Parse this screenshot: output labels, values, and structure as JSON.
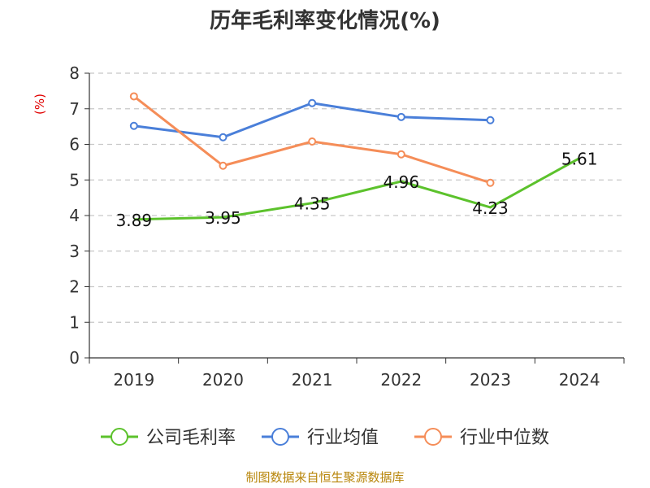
{
  "chart_data": {
    "type": "line",
    "title": "历年毛利率变化情况(%)",
    "ylabel": "(%)",
    "xlabel": "",
    "categories": [
      "2019",
      "2020",
      "2021",
      "2022",
      "2023",
      "2024"
    ],
    "ylim": [
      0,
      8
    ],
    "yticks": [
      "0",
      "1",
      "2",
      "3",
      "4",
      "5",
      "6",
      "7",
      "8"
    ],
    "grid": true,
    "legend_position": "bottom",
    "series": [
      {
        "name": "公司毛利率",
        "color": "#5cc22c",
        "values": [
          3.89,
          3.95,
          4.35,
          4.96,
          4.23,
          5.61
        ],
        "labels": [
          "3.89",
          "3.95",
          "4.35",
          "4.96",
          "4.23",
          "5.61"
        ]
      },
      {
        "name": "行业均值",
        "color": "#4a7fd9",
        "values": [
          6.52,
          6.2,
          7.16,
          6.77,
          6.68,
          null
        ]
      },
      {
        "name": "行业中位数",
        "color": "#f58d58",
        "values": [
          7.35,
          5.4,
          6.08,
          5.72,
          4.92,
          null
        ]
      }
    ]
  },
  "source": "制图数据来自恒生聚源数据库"
}
